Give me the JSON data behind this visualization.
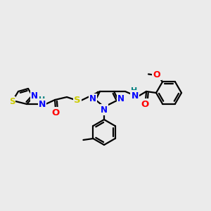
{
  "background_color": "#ebebeb",
  "atom_colors": {
    "N": "#0000ff",
    "O": "#ff0000",
    "S": "#cccc00",
    "C": "#000000",
    "H": "#008080"
  },
  "bond_color": "#000000",
  "bond_width": 1.6,
  "fig_width": 3.0,
  "fig_height": 3.0,
  "dpi": 100,
  "scale": 1.0
}
